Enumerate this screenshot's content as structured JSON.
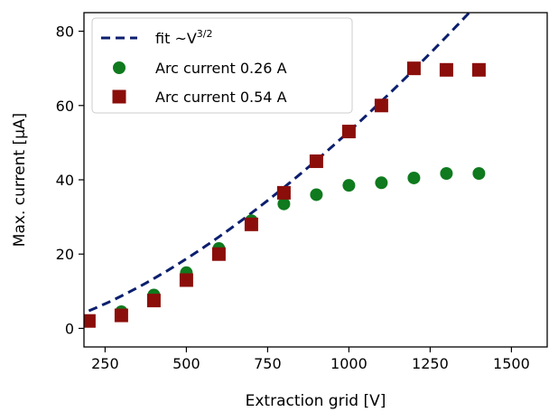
{
  "chart_data": {
    "type": "scatter",
    "xlabel": "Extraction grid [V]",
    "ylabel": "Max. current [μA]",
    "xlim": [
      185,
      1610
    ],
    "ylim": [
      -5,
      85
    ],
    "xticks": [
      250,
      500,
      750,
      1000,
      1250,
      1500
    ],
    "yticks": [
      0,
      20,
      40,
      60,
      80
    ],
    "grid": false,
    "legend_position": "top-left",
    "series": [
      {
        "name": "fit  ~V^{3/2}",
        "kind": "fit-line",
        "style": "dashed",
        "color": "#0c1f6e",
        "model": "power-3/2",
        "anchor": [
          1000,
          53.0
        ],
        "x_range": [
          200,
          1400
        ]
      },
      {
        "name": "Arc current 0.26 A",
        "kind": "marker",
        "marker": "circle",
        "color": "#0f7a1e",
        "x": [
          200,
          300,
          400,
          500,
          600,
          700,
          800,
          900,
          1000,
          1100,
          1200,
          1300,
          1400
        ],
        "y": [
          2,
          4.5,
          9,
          15,
          21.5,
          29,
          33.5,
          36,
          38.5,
          39.2,
          40.5,
          41.7,
          41.7
        ]
      },
      {
        "name": "Arc current 0.54 A",
        "kind": "marker",
        "marker": "square",
        "color": "#8b0e0a",
        "x": [
          200,
          300,
          400,
          500,
          600,
          700,
          800,
          900,
          1000,
          1100,
          1200,
          1300,
          1400
        ],
        "y": [
          2,
          3.5,
          7.5,
          13,
          20,
          28,
          36.5,
          45,
          53,
          60,
          70,
          69.6,
          69.6
        ]
      }
    ]
  }
}
